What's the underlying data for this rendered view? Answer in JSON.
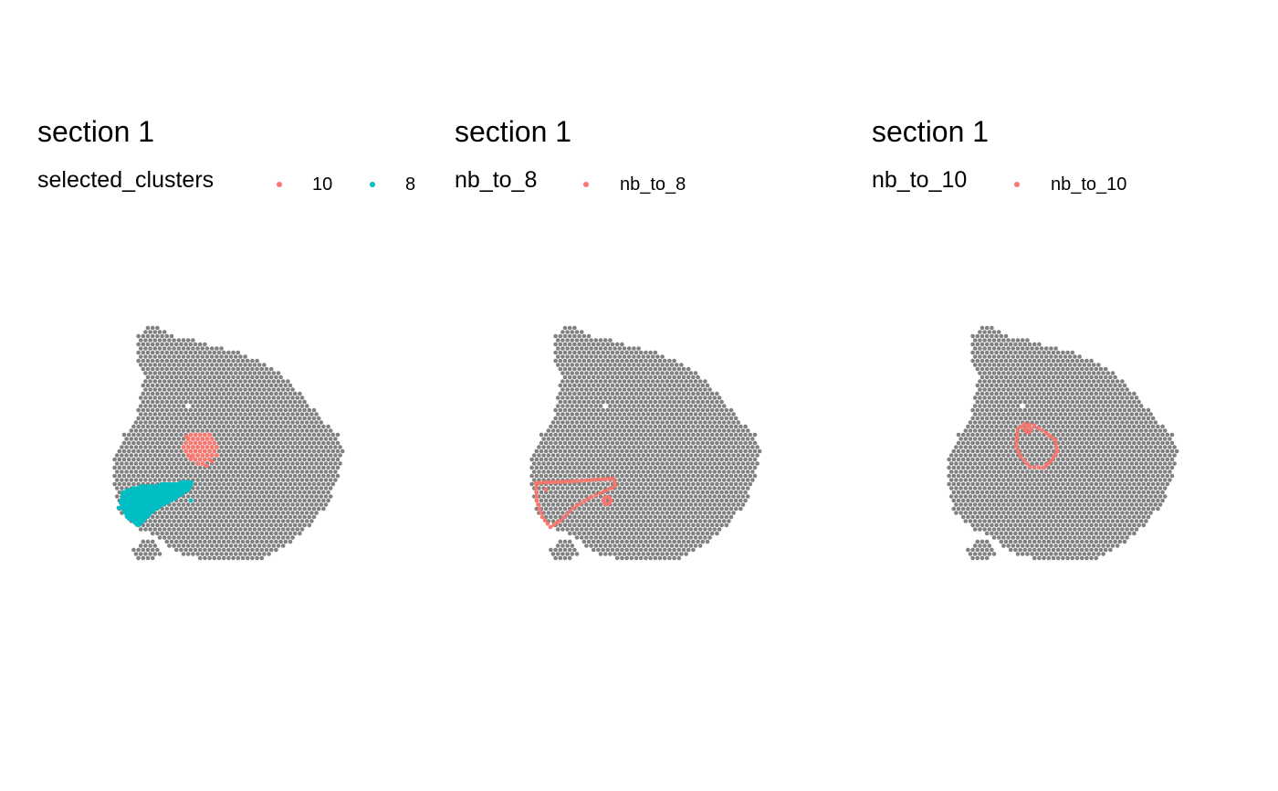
{
  "chart_data": [
    {
      "type": "scatter",
      "title": "section 1",
      "legend": {
        "title": "selected_clusters",
        "entries": [
          {
            "label": "10",
            "color": "#F8766D"
          },
          {
            "label": "8",
            "color": "#00BFC4"
          }
        ]
      },
      "background_color": "#808080",
      "highlight_regions": [
        {
          "series": "10",
          "shape": "blob",
          "color": "#F8766D"
        },
        {
          "series": "8",
          "shape": "wedge",
          "color": "#00BFC4"
        }
      ]
    },
    {
      "type": "scatter",
      "title": "section 1",
      "legend": {
        "title": "nb_to_8",
        "entries": [
          {
            "label": "nb_to_8",
            "color": "#F8766D"
          }
        ]
      },
      "background_color": "#808080",
      "highlight_regions": [
        {
          "series": "nb_to_8",
          "shape": "wedge-outline",
          "color": "#F8766D"
        }
      ]
    },
    {
      "type": "scatter",
      "title": "section 1",
      "legend": {
        "title": "nb_to_10",
        "entries": [
          {
            "label": "nb_to_10",
            "color": "#F8766D"
          }
        ]
      },
      "background_color": "#808080",
      "highlight_regions": [
        {
          "series": "nb_to_10",
          "shape": "ring-outline",
          "color": "#F8766D"
        }
      ]
    }
  ]
}
